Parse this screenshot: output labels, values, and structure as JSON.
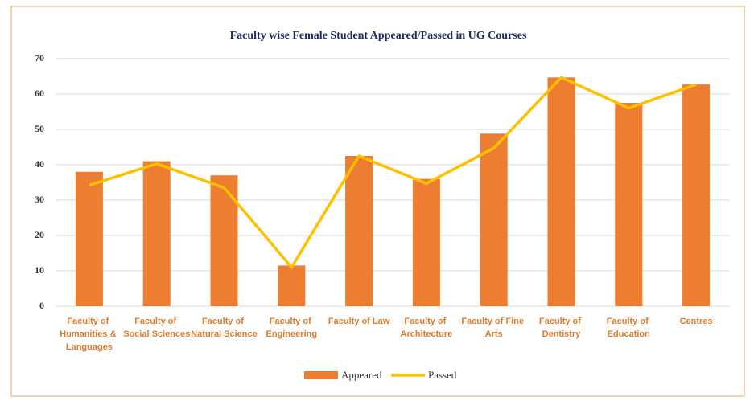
{
  "chart_data": {
    "type": "bar_line",
    "title": "Faculty wise Female Student Appeared/Passed in UG Courses",
    "categories": [
      "Faculty of Humanities & Languages",
      "Faculty of Social Sciences",
      "Faculty of Natural Science",
      "Faculty of Engineering",
      "Faculty of Law",
      "Faculty of Architecture",
      "Faculty of Fine Arts",
      "Faculty of Dentistry",
      "Faculty of Education",
      "Centres"
    ],
    "series": [
      {
        "name": "Appeared",
        "type": "bar",
        "color": "#ed7d31",
        "values": [
          38,
          41,
          37,
          11.5,
          42.5,
          36,
          48.8,
          64.7,
          57.5,
          62.7
        ]
      },
      {
        "name": "Passed",
        "type": "line",
        "color": "#ffc000",
        "values": [
          34.2,
          40.3,
          33.5,
          11,
          42.5,
          34.7,
          44.7,
          64.7,
          56,
          62.7
        ]
      }
    ],
    "ylim": [
      0,
      70
    ],
    "yticks": [
      0,
      10,
      20,
      30,
      40,
      50,
      60,
      70
    ],
    "grid": true,
    "legend": "bottom"
  }
}
